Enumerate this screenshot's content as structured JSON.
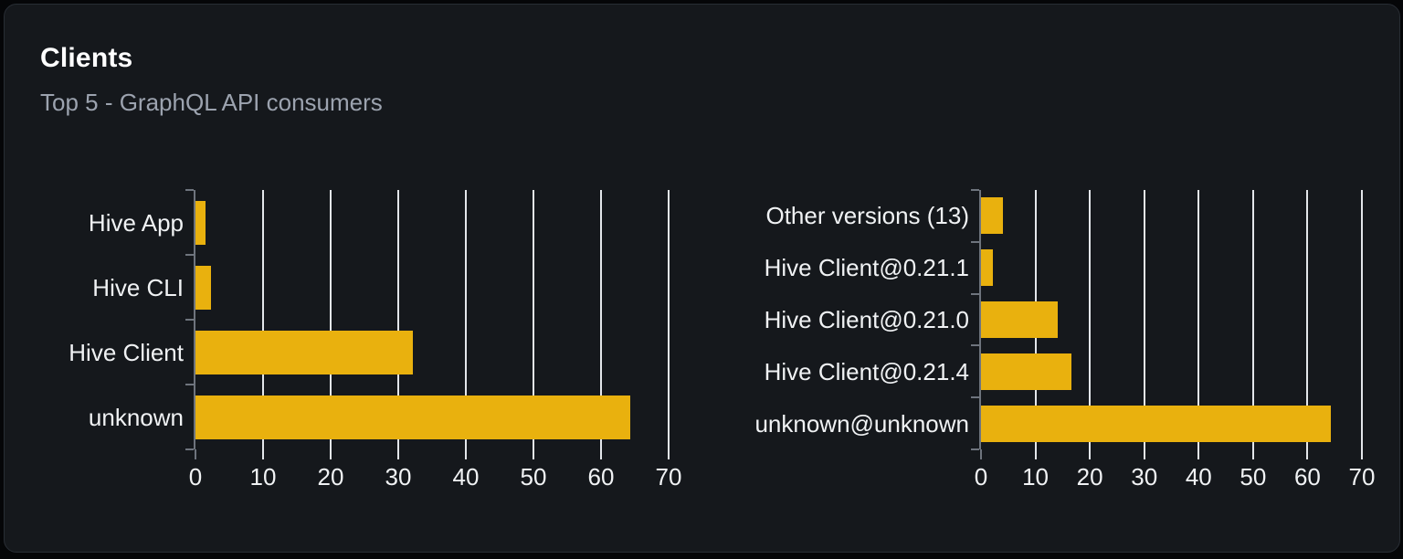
{
  "panel": {
    "title": "Clients",
    "subtitle": "Top 5 - GraphQL API consumers"
  },
  "colors": {
    "page_bg": "#050608",
    "card_bg": "#15181c",
    "card_border": "#282d34",
    "title": "#ffffff",
    "subtitle": "#9ca3af",
    "label": "#f0f2f4",
    "grid": "#e3e6ea",
    "axis": "#6e747d",
    "bar": "#e9b10e"
  },
  "chart_data": [
    {
      "type": "bar",
      "name": "clients-by-name",
      "orientation": "horizontal",
      "title": "",
      "categories": [
        "Hive App",
        "Hive CLI",
        "Hive Client",
        "unknown"
      ],
      "values": [
        1.5,
        2.3,
        32.2,
        64.3
      ],
      "xlim": [
        0,
        70
      ],
      "xticks": [
        0,
        10,
        20,
        30,
        40,
        50,
        60,
        70
      ],
      "grid": true,
      "legend": false
    },
    {
      "type": "bar",
      "name": "clients-by-version",
      "orientation": "horizontal",
      "title": "",
      "categories": [
        "Other versions (13)",
        "Hive Client@0.21.1",
        "Hive Client@0.21.0",
        "Hive Client@0.21.4",
        "unknown@unknown"
      ],
      "values": [
        4.0,
        2.1,
        14.1,
        16.6,
        64.3
      ],
      "xlim": [
        0,
        70
      ],
      "xticks": [
        0,
        10,
        20,
        30,
        40,
        50,
        60,
        70
      ],
      "grid": true,
      "legend": false
    }
  ]
}
